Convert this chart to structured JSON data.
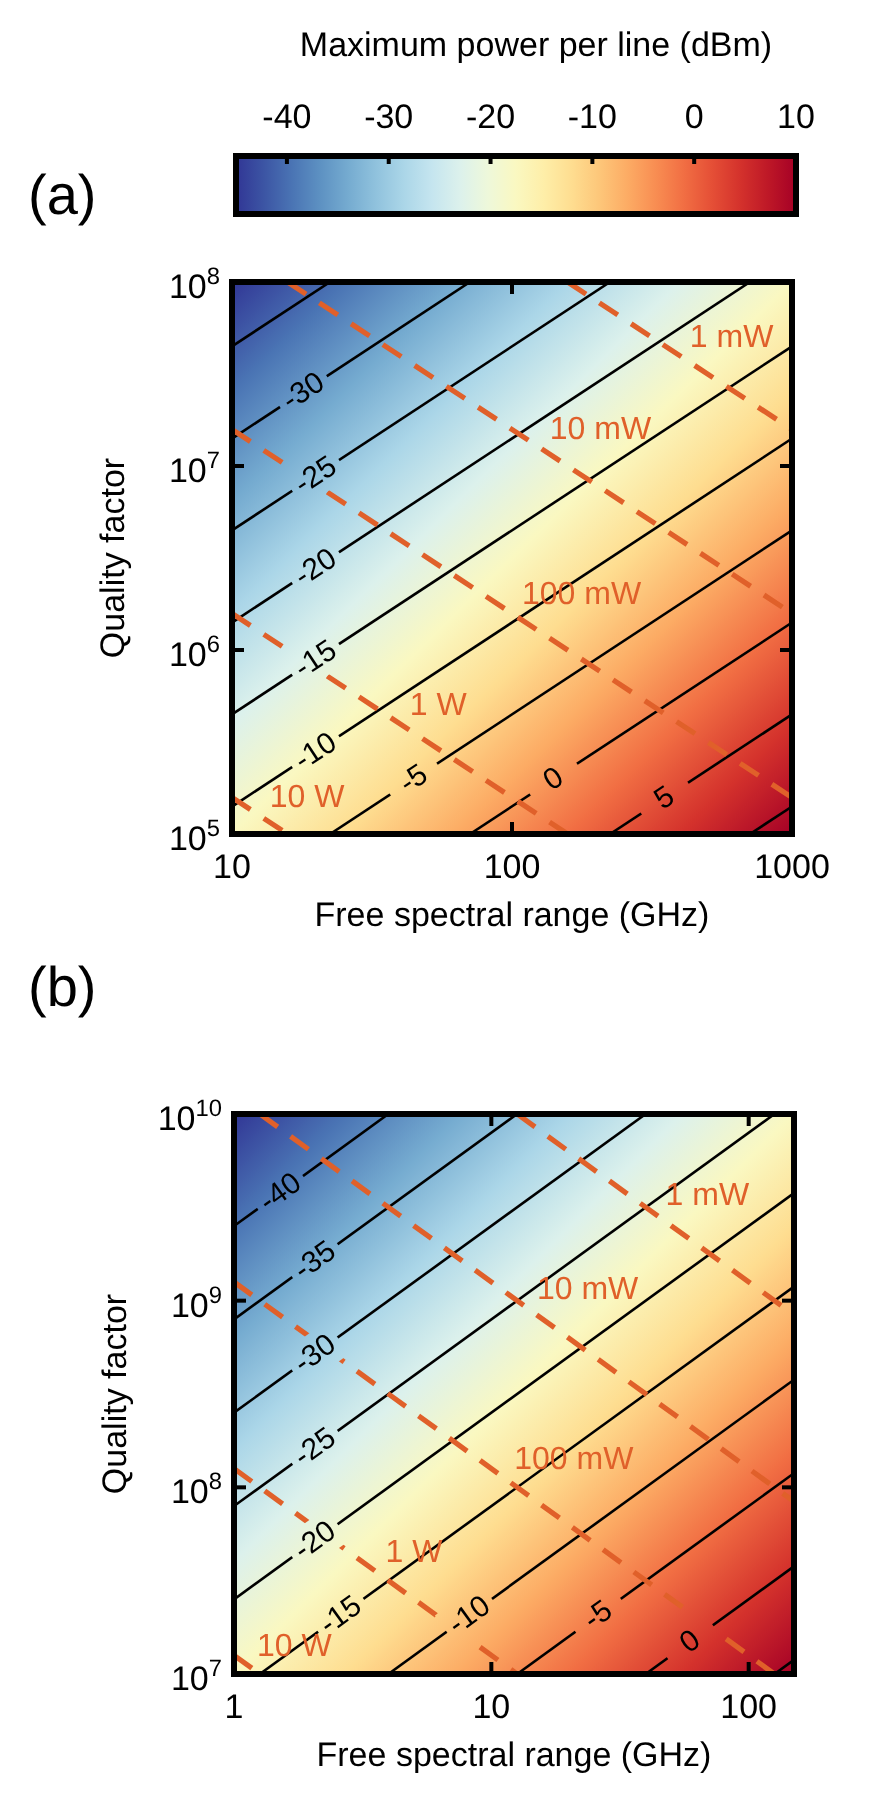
{
  "chart_data": [
    {
      "type": "line",
      "title": "(a)",
      "xlabel": "Free spectral range (GHz)",
      "ylabel": "Quality factor",
      "clabel": "Maximum power per line (dBm)",
      "clim": [
        -45,
        10
      ],
      "cticks": [
        -40,
        -30,
        -20,
        -10,
        0,
        10
      ],
      "log": "xy",
      "xlim": [
        10,
        1000
      ],
      "xticks": [
        10,
        100,
        1000
      ],
      "ylim": [
        100000,
        100000000
      ],
      "yticks": [
        {
          "value": 100000,
          "label": "10$^{5}$"
        },
        {
          "value": 1000000,
          "label": "10$^{6}$"
        },
        {
          "value": 10000000,
          "label": "10$^{7}$"
        },
        {
          "value": 100000000,
          "label": "10$^{8}$"
        }
      ],
      "series": [
        {
          "color": "#000000",
          "x": [
            10,
            22.4
          ],
          "values": [
            44700000,
            100000000
          ]
        },
        {
          "name": "-30",
          "color": "#000000",
          "x": [
            10,
            70.8
          ],
          "values": [
            14100000,
            100000000
          ]
        },
        {
          "name": "-25",
          "color": "#000000",
          "x": [
            10,
            224
          ],
          "values": [
            4470000,
            100000000
          ]
        },
        {
          "name": "-20",
          "color": "#000000",
          "x": [
            10,
            708
          ],
          "values": [
            1410000,
            100000000
          ]
        },
        {
          "name": "-15",
          "color": "#000000",
          "x": [
            10,
            1000
          ],
          "values": [
            447000,
            44700000
          ]
        },
        {
          "name": "-10",
          "color": "#000000",
          "x": [
            10,
            1000
          ],
          "values": [
            141000,
            14100000
          ]
        },
        {
          "name": "-5",
          "color": "#000000",
          "x": [
            22.4,
            1000
          ],
          "values": [
            100000,
            4470000
          ]
        },
        {
          "name": "0",
          "color": "#000000",
          "x": [
            70.8,
            1000
          ],
          "values": [
            100000,
            1410000
          ]
        },
        {
          "name": "5",
          "color": "#000000",
          "x": [
            224,
            1000
          ],
          "values": [
            100000,
            447000
          ]
        },
        {
          "color": "#000000",
          "x": [
            708,
            1000
          ],
          "values": [
            100000,
            141000
          ]
        },
        {
          "name": "1 mW",
          "color": "#e0602a",
          "line_style": "dashed",
          "x": [
            158,
            1000
          ],
          "values": [
            100000000,
            15800000
          ]
        },
        {
          "name": "10 mW",
          "color": "#e0602a",
          "line_style": "dashed",
          "x": [
            15.8,
            1000
          ],
          "values": [
            100000000,
            1580000
          ]
        },
        {
          "name": "100 mW",
          "color": "#e0602a",
          "line_style": "dashed",
          "x": [
            10,
            1000
          ],
          "values": [
            15800000,
            158000
          ]
        },
        {
          "name": "1 W",
          "color": "#e0602a",
          "line_style": "dashed",
          "x": [
            10,
            158
          ],
          "values": [
            1580000,
            100000
          ]
        },
        {
          "name": "10 W",
          "color": "#e0602a",
          "line_style": "dashed",
          "x": [
            10,
            15.8
          ],
          "values": [
            158000,
            100000
          ]
        }
      ]
    },
    {
      "type": "line",
      "title": "(b)",
      "xlabel": "Free spectral range (GHz)",
      "ylabel": "Quality factor",
      "log": "xy",
      "xlim": [
        1,
        150
      ],
      "xticks": [
        1,
        10,
        100
      ],
      "ylim": [
        10000000,
        10000000000
      ],
      "yticks": [
        {
          "value": 10000000,
          "label": "10$^{7}$"
        },
        {
          "value": 100000000,
          "label": "10$^{8}$"
        },
        {
          "value": 1000000000,
          "label": "10$^{9}$"
        },
        {
          "value": 10000000000,
          "label": "10$^{10}$"
        }
      ],
      "series": [
        {
          "name": "-40",
          "color": "#000000",
          "x": [
            1,
            3.98
          ],
          "values": [
            2510000000,
            10000000000
          ]
        },
        {
          "name": "-35",
          "color": "#000000",
          "x": [
            1,
            12.6
          ],
          "values": [
            794000000,
            10000000000
          ]
        },
        {
          "name": "-30",
          "color": "#000000",
          "x": [
            1,
            39.8
          ],
          "values": [
            251000000,
            10000000000
          ]
        },
        {
          "name": "-25",
          "color": "#000000",
          "x": [
            1,
            126
          ],
          "values": [
            79400000,
            10000000000
          ]
        },
        {
          "name": "-20",
          "color": "#000000",
          "x": [
            1,
            150
          ],
          "values": [
            25100000,
            3770000000
          ]
        },
        {
          "name": "-15",
          "color": "#000000",
          "x": [
            1.26,
            150
          ],
          "values": [
            10000000,
            1190000000
          ]
        },
        {
          "name": "-10",
          "color": "#000000",
          "x": [
            3.98,
            150
          ],
          "values": [
            10000000,
            377000000
          ]
        },
        {
          "name": "-5",
          "color": "#000000",
          "x": [
            12.6,
            150
          ],
          "values": [
            10000000,
            119000000
          ]
        },
        {
          "name": "0",
          "color": "#000000",
          "x": [
            39.8,
            150
          ],
          "values": [
            10000000,
            37700000
          ]
        },
        {
          "color": "#000000",
          "x": [
            126,
            150
          ],
          "values": [
            10000000,
            11900000
          ]
        },
        {
          "name": "1 mW",
          "color": "#e0602a",
          "line_style": "dashed",
          "x": [
            12.6,
            150
          ],
          "values": [
            10000000000,
            840000000
          ]
        },
        {
          "name": "10 mW",
          "color": "#e0602a",
          "line_style": "dashed",
          "x": [
            1.26,
            150
          ],
          "values": [
            10000000000,
            84000000
          ]
        },
        {
          "name": "100 mW",
          "color": "#e0602a",
          "line_style": "dashed",
          "x": [
            1,
            126
          ],
          "values": [
            1260000000,
            10000000
          ]
        },
        {
          "name": "1 W",
          "color": "#e0602a",
          "line_style": "dashed",
          "x": [
            1,
            12.6
          ],
          "values": [
            126000000,
            10000000
          ]
        },
        {
          "name": "10 W",
          "color": "#e0602a",
          "line_style": "dashed",
          "x": [
            1,
            1.26
          ],
          "values": [
            12600000,
            10000000
          ]
        }
      ]
    }
  ]
}
